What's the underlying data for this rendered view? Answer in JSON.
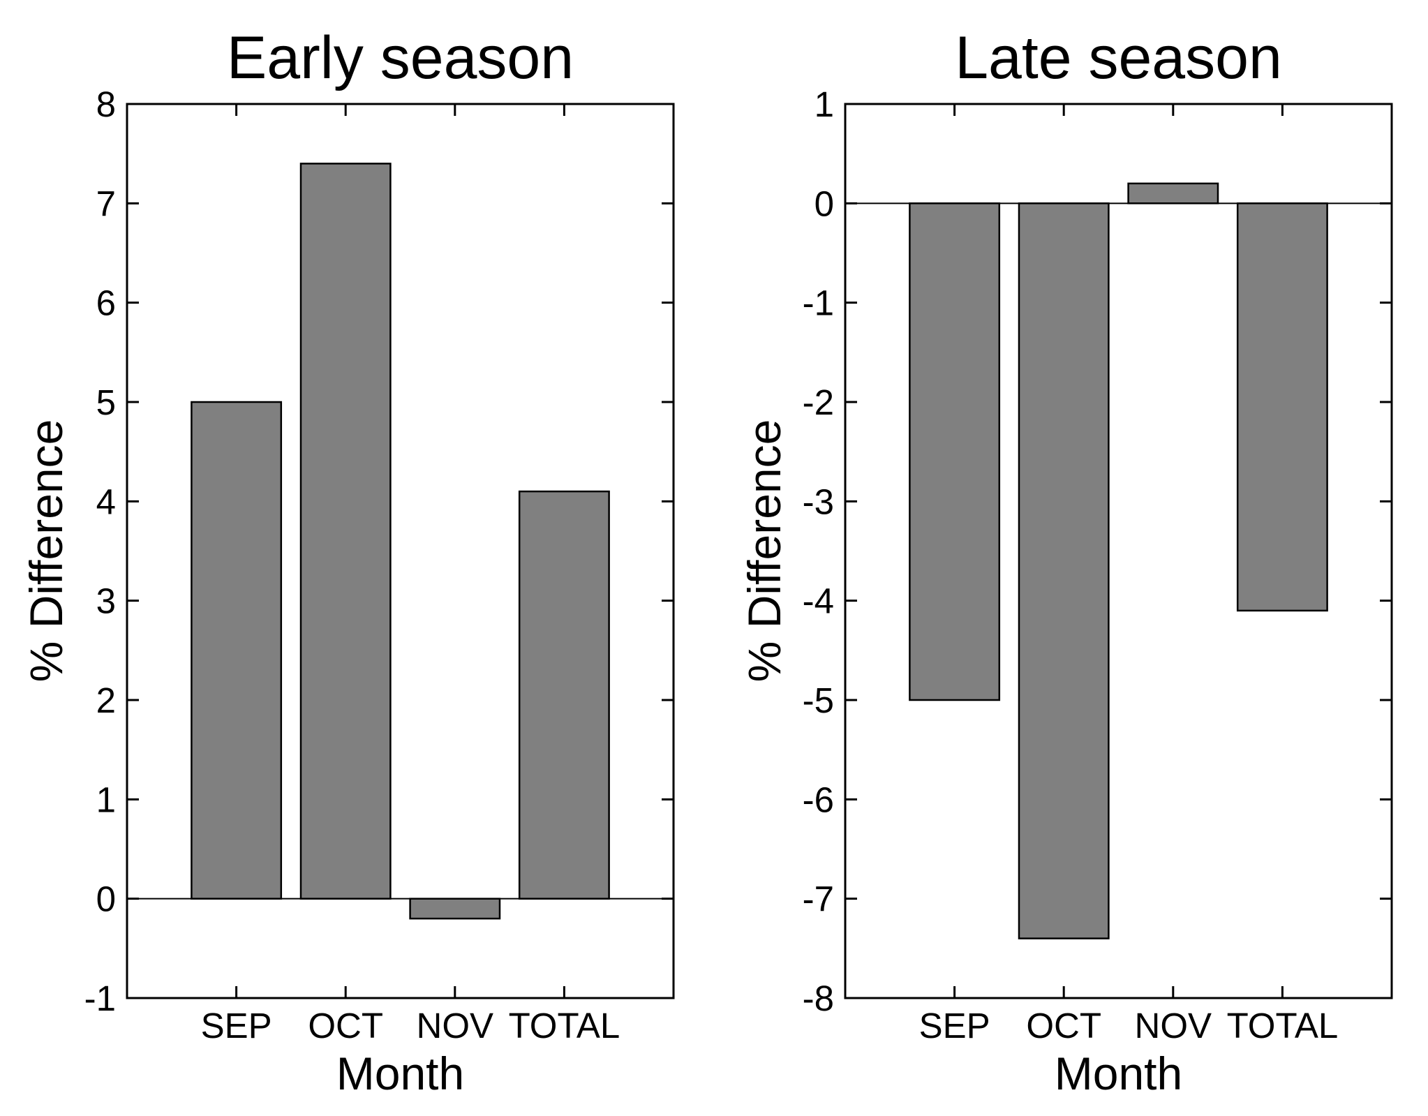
{
  "figure": {
    "background": "#ffffff",
    "bar_fill": "#808080",
    "bar_stroke": "#000000",
    "axis_color": "#000000",
    "text_color": "#000000"
  },
  "chart_data": [
    {
      "type": "bar",
      "title": "Early season",
      "xlabel": "Month",
      "ylabel": "% Difference",
      "categories": [
        "SEP",
        "OCT",
        "NOV",
        "TOTAL"
      ],
      "values": [
        5.0,
        7.4,
        -0.2,
        4.1
      ],
      "ylim": [
        -1,
        8
      ],
      "yticks": [
        8,
        7,
        6,
        5,
        4,
        3,
        2,
        1,
        0,
        -1
      ],
      "xlim": [
        0,
        5
      ],
      "x_positions": [
        1,
        2,
        3,
        4
      ],
      "bar_width_units": 0.82,
      "grid": false,
      "legend": null,
      "zero_line": true,
      "box": true
    },
    {
      "type": "bar",
      "title": "Late season",
      "xlabel": "Month",
      "ylabel": "% Difference",
      "categories": [
        "SEP",
        "OCT",
        "NOV",
        "TOTAL"
      ],
      "values": [
        -5.0,
        -7.4,
        0.2,
        -4.1
      ],
      "ylim": [
        -8,
        1
      ],
      "yticks": [
        1,
        0,
        -1,
        -2,
        -3,
        -4,
        -5,
        -6,
        -7,
        -8
      ],
      "xlim": [
        0,
        5
      ],
      "x_positions": [
        1,
        2,
        3,
        4
      ],
      "bar_width_units": 0.82,
      "grid": false,
      "legend": null,
      "zero_line": true,
      "box": true
    }
  ]
}
